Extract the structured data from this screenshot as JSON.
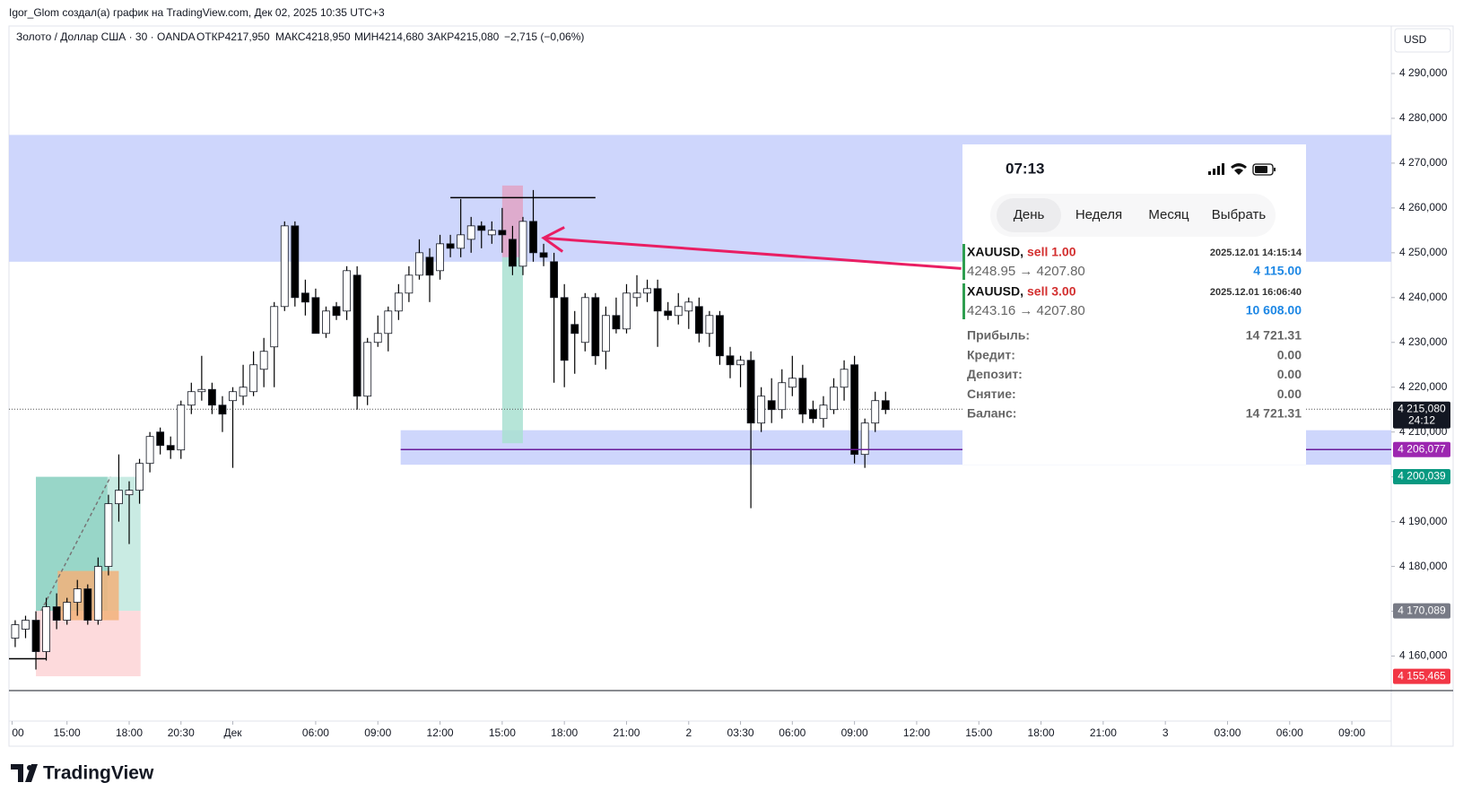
{
  "header": {
    "credit": "Igor_Glom создал(а) график на TradingView.com, Дек 02, 2025 10:35 UTC+3",
    "brand": "TradingView"
  },
  "chart_data": {
    "type": "candlestick",
    "title": "Золото / Доллар США · 30 · OANDA",
    "ohlc_legend": [
      "ОТКР4217,950",
      "МАКС4218,950",
      "МИН4214,680",
      "ЗАКР4215,080",
      "−2,715 (−0,06%)"
    ],
    "currency": "USD",
    "up_color": "#ffffff",
    "down_color": "#000000",
    "wick_color": "#000000",
    "x": [
      -5,
      -4,
      -3,
      -2,
      -1,
      0,
      1,
      2,
      3,
      4,
      5,
      6,
      7,
      8,
      9,
      10,
      11,
      12,
      13,
      14,
      15,
      16,
      17,
      18,
      19,
      20,
      21,
      22,
      23,
      24,
      25,
      26,
      27,
      28,
      29,
      30,
      31,
      32,
      33,
      34,
      35,
      36,
      37,
      38,
      39,
      40,
      41,
      42,
      43,
      44,
      45,
      46,
      47,
      48,
      49,
      50,
      51,
      52,
      53,
      54,
      55,
      56,
      57,
      58,
      59,
      60,
      61,
      62,
      63,
      64,
      65,
      66,
      67,
      68,
      69,
      70,
      71,
      72,
      73,
      74,
      75,
      76,
      77,
      78,
      79
    ],
    "candles": [
      [
        4164,
        4168,
        4162,
        4167
      ],
      [
        4166,
        4169,
        4164,
        4168
      ],
      [
        4168,
        4170,
        4157,
        4161
      ],
      [
        4161,
        4173,
        4159,
        4171
      ],
      [
        4171,
        4174,
        4166,
        4168
      ],
      [
        4168,
        4173,
        4167,
        4172
      ],
      [
        4172,
        4177,
        4169,
        4175
      ],
      [
        4175,
        4176,
        4167,
        4168
      ],
      [
        4168,
        4182,
        4167,
        4180
      ],
      [
        4180,
        4196,
        4178,
        4194
      ],
      [
        4194,
        4205,
        4190,
        4197
      ],
      [
        4196,
        4199,
        4185,
        4197
      ],
      [
        4197,
        4204,
        4194,
        4203
      ],
      [
        4203,
        4210,
        4201,
        4209
      ],
      [
        4210,
        4211,
        4205,
        4207
      ],
      [
        4207,
        4209,
        4204,
        4206
      ],
      [
        4206,
        4217,
        4204,
        4216
      ],
      [
        4216,
        4221,
        4214,
        4219
      ],
      [
        4219,
        4227,
        4217,
        4219.5
      ],
      [
        4219.5,
        4221,
        4214,
        4216
      ],
      [
        4216,
        4218,
        4210,
        4214
      ],
      [
        4217,
        4220,
        4202,
        4219
      ],
      [
        4218,
        4225,
        4216,
        4220
      ],
      [
        4219,
        4228,
        4218,
        4225
      ],
      [
        4224,
        4231,
        4220,
        4228
      ],
      [
        4229,
        4239,
        4220,
        4238
      ],
      [
        4238,
        4257,
        4237,
        4256
      ],
      [
        4256,
        4257,
        4238,
        4240
      ],
      [
        4241,
        4244,
        4236,
        4239
      ],
      [
        4240,
        4242,
        4232,
        4232
      ],
      [
        4232,
        4238,
        4231,
        4237
      ],
      [
        4238,
        4239,
        4235,
        4236
      ],
      [
        4237,
        4247,
        4235,
        4246
      ],
      [
        4245,
        4247,
        4215,
        4218
      ],
      [
        4218,
        4231,
        4216,
        4230
      ],
      [
        4230,
        4236,
        4229,
        4232
      ],
      [
        4232,
        4238,
        4228,
        4237
      ],
      [
        4237,
        4243,
        4235,
        4241
      ],
      [
        4241,
        4247,
        4239,
        4245
      ],
      [
        4245,
        4253,
        4244,
        4250
      ],
      [
        4249,
        4251,
        4239,
        4245
      ],
      [
        4246,
        4254,
        4244,
        4252
      ],
      [
        4252,
        4254,
        4249,
        4251
      ],
      [
        4251,
        4262,
        4249,
        4254
      ],
      [
        4253,
        4258,
        4250,
        4256
      ],
      [
        4256,
        4257,
        4251,
        4255
      ],
      [
        4254,
        4257,
        4252,
        4255
      ],
      [
        4255,
        4260,
        4250,
        4254
      ],
      [
        4253,
        4256,
        4245,
        4247
      ],
      [
        4247,
        4258,
        4245,
        4257
      ],
      [
        4257,
        4264,
        4248,
        4250
      ],
      [
        4250,
        4252,
        4247,
        4249
      ],
      [
        4248,
        4250,
        4221,
        4240
      ],
      [
        4240,
        4243,
        4220,
        4226
      ],
      [
        4234,
        4237,
        4223,
        4232
      ],
      [
        4230,
        4241,
        4228,
        4240
      ],
      [
        4240,
        4241,
        4225,
        4227
      ],
      [
        4228,
        4238,
        4224,
        4236
      ],
      [
        4236,
        4240,
        4232,
        4233
      ],
      [
        4233,
        4243,
        4232,
        4241
      ],
      [
        4240,
        4245,
        4238,
        4241
      ],
      [
        4241,
        4244,
        4239,
        4242
      ],
      [
        4242,
        4244,
        4229,
        4237
      ],
      [
        4237,
        4239,
        4235,
        4236
      ],
      [
        4236,
        4241,
        4234,
        4238
      ],
      [
        4237,
        4240,
        4233,
        4239
      ],
      [
        4238,
        4240,
        4230,
        4232
      ],
      [
        4232,
        4237,
        4229,
        4236
      ],
      [
        4236,
        4237,
        4225,
        4227
      ],
      [
        4227,
        4229,
        4222,
        4225
      ],
      [
        4225,
        4227,
        4220,
        4226
      ],
      [
        4226,
        4228,
        4193,
        4212
      ],
      [
        4212,
        4220,
        4210,
        4218
      ],
      [
        4217,
        4222,
        4212,
        4215
      ],
      [
        4215,
        4224,
        4213,
        4221
      ],
      [
        4220,
        4227,
        4218,
        4222
      ],
      [
        4222,
        4225,
        4212,
        4214
      ],
      [
        4215,
        4217,
        4212,
        4213
      ],
      [
        4213,
        4218,
        4211,
        4216
      ],
      [
        4215,
        4222,
        4214,
        4220
      ],
      [
        4220,
        4226,
        4217,
        4224
      ],
      [
        4225,
        4227,
        4203,
        4205
      ],
      [
        4205,
        4213,
        4202,
        4212
      ],
      [
        4212,
        4219,
        4210,
        4217
      ],
      [
        4217,
        4219,
        4214,
        4215
      ]
    ],
    "xlim": [
      -5.6,
      127.8
    ],
    "ylim": [
      4152.3,
      4300.6
    ],
    "yticks": [
      {
        "value": 4160,
        "label": "4 160,000"
      },
      {
        "value": 4170,
        "label": "4 170,000"
      },
      {
        "value": 4180,
        "label": "4 180,000"
      },
      {
        "value": 4190,
        "label": "4 190,000"
      },
      {
        "value": 4200,
        "label": "4 200,000"
      },
      {
        "value": 4210,
        "label": "4 210,000"
      },
      {
        "value": 4220,
        "label": "4 220,000"
      },
      {
        "value": 4230,
        "label": "4 230,000"
      },
      {
        "value": 4240,
        "label": "4 240,000"
      },
      {
        "value": 4250,
        "label": "4 250,000"
      },
      {
        "value": 4260,
        "label": "4 260,000"
      },
      {
        "value": 4270,
        "label": "4 270,000"
      },
      {
        "value": 4280,
        "label": "4 280,000"
      },
      {
        "value": 4290,
        "label": "4 290,000"
      }
    ],
    "xticks": [
      {
        "value": -5.3,
        "label": "00"
      },
      {
        "value": 0,
        "label": "15:00"
      },
      {
        "value": 6,
        "label": "18:00"
      },
      {
        "value": 11,
        "label": "20:30"
      },
      {
        "value": 16,
        "label": "Дек"
      },
      {
        "value": 24,
        "label": "06:00"
      },
      {
        "value": 30,
        "label": "09:00"
      },
      {
        "value": 36,
        "label": "12:00"
      },
      {
        "value": 42,
        "label": "15:00"
      },
      {
        "value": 48,
        "label": "18:00"
      },
      {
        "value": 54,
        "label": "21:00"
      },
      {
        "value": 60,
        "label": "2"
      },
      {
        "value": 65,
        "label": "03:30"
      },
      {
        "value": 70,
        "label": "06:00"
      },
      {
        "value": 76,
        "label": "09:00"
      },
      {
        "value": 82,
        "label": "12:00"
      },
      {
        "value": 88,
        "label": "15:00"
      },
      {
        "value": 94,
        "label": "18:00"
      },
      {
        "value": 100,
        "label": "21:00"
      },
      {
        "value": 106,
        "label": "3"
      },
      {
        "value": 112,
        "label": "03:00"
      },
      {
        "value": 118,
        "label": "06:00"
      },
      {
        "value": 124,
        "label": "09:00"
      }
    ],
    "current_price": 4215.08,
    "price_labels": [
      {
        "value": 4215.08,
        "label": "4 215,080",
        "sub": "24:12",
        "color": "#131722"
      },
      {
        "value": 4206.077,
        "label": "4 206,077",
        "color": "#9c27b0"
      },
      {
        "value": 4200.039,
        "label": "4 200,039",
        "color": "#089981"
      },
      {
        "value": 4170.089,
        "label": "4 170,089",
        "color": "#787b86"
      },
      {
        "value": 4155.465,
        "label": "4 155,465",
        "color": "#f23645"
      }
    ],
    "zones": [
      {
        "x": [
          -5.6,
          127.8
        ],
        "y": [
          4248,
          4276.3
        ],
        "color": "#c6cffb"
      },
      {
        "x": [
          32.2,
          127.8
        ],
        "y": [
          4202.7,
          4210.4
        ],
        "color": "#c6cffb"
      },
      {
        "x": [
          -3,
          7.1
        ],
        "y": [
          4170.1,
          4200
        ],
        "color": "#c0e7de"
      },
      {
        "x": [
          -3,
          3.9
        ],
        "y": [
          4170.1,
          4200
        ],
        "color": "#8fd2c3"
      },
      {
        "x": [
          -3,
          7.1
        ],
        "y": [
          4155.5,
          4170.1
        ],
        "color": "#fdd3d6"
      },
      {
        "x": [
          -0.9,
          5
        ],
        "y": [
          4168,
          4179
        ],
        "color": "#f2b27a"
      },
      {
        "x": [
          42,
          44
        ],
        "y": [
          4249,
          4265
        ],
        "color": "#e0a3c4"
      },
      {
        "x": [
          42,
          44
        ],
        "y": [
          4207.5,
          4249
        ],
        "color": "#a9e1d1"
      }
    ],
    "lines": [
      {
        "x": [
          32.2,
          127.8
        ],
        "y": [
          4206.077,
          4206.077
        ],
        "color": "#6a1b9a"
      },
      {
        "x": [
          37,
          51
        ],
        "y": [
          4262.3,
          4262.3
        ],
        "color": "#000000"
      },
      {
        "x": [
          -5.6,
          -2
        ],
        "y": [
          4159.4,
          4159.4
        ],
        "color": "#000000"
      },
      {
        "x": [
          -2.5,
          4.2
        ],
        "y": [
          4170.1,
          4200
        ],
        "color": "#777777",
        "dashed": true
      }
    ],
    "arrow": {
      "x": [
        86.3,
        46
      ],
      "y": [
        4246.5,
        4253.3
      ],
      "color": "#e91e63"
    }
  },
  "overlay": {
    "time": "07:13",
    "tabs": [
      "День",
      "Неделя",
      "Месяц",
      "Выбрать"
    ],
    "trades": [
      {
        "symbol": "XAUUSD,",
        "side": "sell 1.00",
        "time": "2025.12.01 14:15:14",
        "prices": "4248.95 → 4207.80",
        "profit": "4 115.00"
      },
      {
        "symbol": "XAUUSD,",
        "side": "sell 3.00",
        "time": "2025.12.01 16:06:40",
        "prices": "4243.16 → 4207.80",
        "profit": "10 608.00"
      }
    ],
    "summary": [
      [
        "Прибыль:",
        "14 721.31"
      ],
      [
        "Кредит:",
        "0.00"
      ],
      [
        "Депозит:",
        "0.00"
      ],
      [
        "Снятие:",
        "0.00"
      ],
      [
        "Баланс:",
        "14 721.31"
      ]
    ]
  }
}
